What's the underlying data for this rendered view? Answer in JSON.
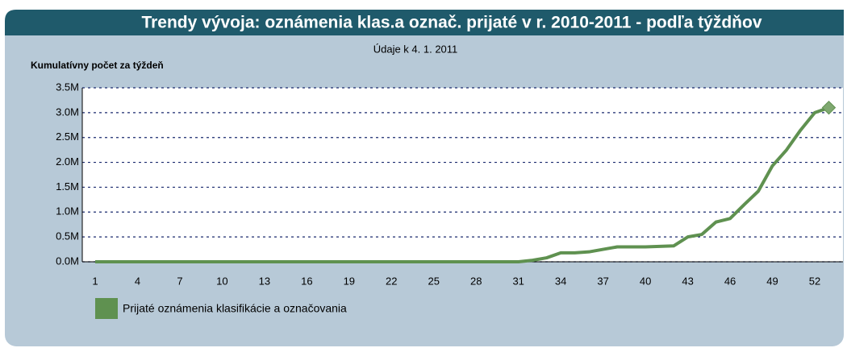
{
  "chart_data": {
    "type": "line",
    "title": "Trendy vývoja: oznámenia klas.a označ. prijaté v r. 2010-2011 - podľa týždňov",
    "subtitle": "Údaje k 4. 1. 2011",
    "ylabel": "Kumulatívny počet za týždeň",
    "categories": [
      "1",
      null,
      null,
      "4",
      null,
      null,
      "7",
      null,
      null,
      "10",
      null,
      null,
      "13",
      null,
      null,
      "16",
      null,
      null,
      "19",
      null,
      null,
      "22",
      null,
      null,
      "25",
      null,
      null,
      "28",
      null,
      null,
      "31",
      null,
      null,
      "34",
      null,
      null,
      "37",
      null,
      null,
      "40",
      null,
      null,
      "43",
      null,
      null,
      "46",
      null,
      null,
      "49",
      null,
      null,
      "52",
      null
    ],
    "series": [
      {
        "name": "Prijaté oznámenia klasifikácie a označovania",
        "color": "#5f9150",
        "values": [
          0,
          0,
          0,
          0,
          0,
          0,
          0,
          0,
          0,
          0,
          0,
          0,
          0,
          0,
          0,
          0,
          0,
          0,
          0,
          0,
          0,
          0,
          0,
          0,
          0,
          0,
          0,
          0,
          0,
          0,
          0,
          30000,
          80000,
          180000,
          180000,
          200000,
          250000,
          300000,
          300000,
          300000,
          310000,
          320000,
          500000,
          550000,
          800000,
          870000,
          1150000,
          1420000,
          1930000,
          2250000,
          2650000,
          3000000,
          3100000
        ]
      }
    ],
    "ylim": [
      0,
      3500000
    ],
    "yticks": [
      {
        "value": 0,
        "label": "0.0M"
      },
      {
        "value": 500000,
        "label": "0.5M"
      },
      {
        "value": 1000000,
        "label": "1.0M"
      },
      {
        "value": 1500000,
        "label": "1.5M"
      },
      {
        "value": 2000000,
        "label": "2.0M"
      },
      {
        "value": 2500000,
        "label": "2.5M"
      },
      {
        "value": 3000000,
        "label": "3.0M"
      },
      {
        "value": 3500000,
        "label": "3.5M"
      }
    ],
    "grid": true
  }
}
